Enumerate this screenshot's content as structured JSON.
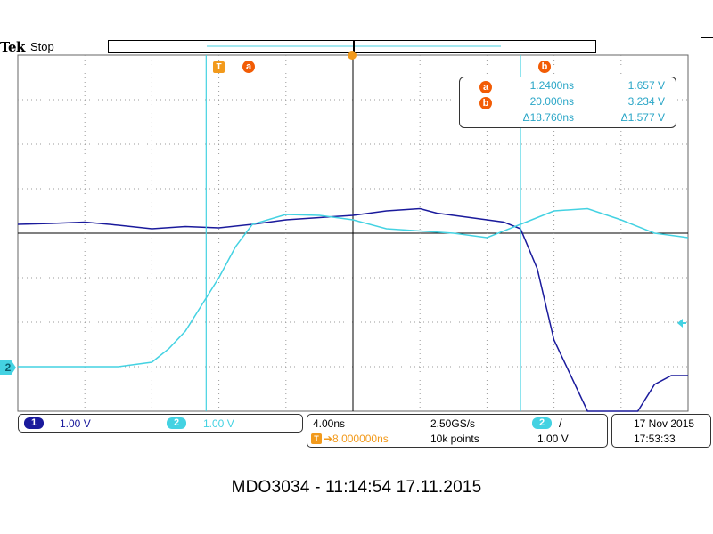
{
  "header": {
    "brand": "Tek",
    "run_state": "Stop"
  },
  "cursors": {
    "a_label": "a",
    "b_label": "b",
    "trigger_label": "T"
  },
  "readout": {
    "a": {
      "badge": "a",
      "time": "1.2400ns",
      "volts": "1.657 V"
    },
    "b": {
      "badge": "b",
      "time": "20.000ns",
      "volts": "3.234 V"
    },
    "delta": {
      "time": "Δ18.760ns",
      "volts": "Δ1.577 V"
    }
  },
  "channels": {
    "ch1": {
      "badge": "1",
      "scale": "1.00 V",
      "color": "#1a1a9c"
    },
    "ch2": {
      "badge": "2",
      "scale": "1.00 V",
      "color": "#44d2e2"
    },
    "ch2_marker": "2"
  },
  "timebase": {
    "time_per_div": "4.00ns",
    "sample_rate": "2.50GS/s",
    "trigger_badge": "T",
    "trigger_position": "➔8.000000ns",
    "record_length": "10k points",
    "trigger_channel": "2",
    "trigger_slope": "/",
    "trigger_level": "1.00 V"
  },
  "datetime": {
    "date": "17 Nov 2015",
    "time": "17:53:33"
  },
  "footer": {
    "caption": "MDO3034 - 11:14:54   17.11.2015"
  },
  "colors": {
    "cursor_badge": "#f25c05",
    "trigger": "#f29a1c",
    "grid": "#888888",
    "ch1_trace": "#1a1a9c",
    "ch2_trace": "#44d2e2"
  },
  "chart_data": {
    "type": "line",
    "x_unit": "ns",
    "xlim": [
      -10,
      30
    ],
    "ylim": [
      -4,
      4
    ],
    "series": [
      {
        "name": "1",
        "x": [
          -10,
          -8,
          -6,
          -4,
          -2,
          0,
          2,
          4,
          6,
          8,
          10,
          12,
          14,
          15,
          16,
          17,
          18,
          19,
          20,
          21,
          22,
          24,
          26,
          27,
          28,
          29,
          30
        ],
        "values": [
          0.2,
          0.22,
          0.25,
          0.18,
          0.1,
          0.15,
          0.12,
          0.2,
          0.3,
          0.35,
          0.4,
          0.5,
          0.55,
          0.45,
          0.4,
          0.35,
          0.3,
          0.25,
          0.1,
          -0.8,
          -2.4,
          -4,
          -4,
          -4,
          -3.4,
          -3.2,
          -3.2
        ]
      },
      {
        "name": "2",
        "x": [
          -10,
          -8,
          -6,
          -4,
          -2,
          -1,
          0,
          1,
          2,
          3,
          4,
          6,
          8,
          10,
          12,
          14,
          16,
          18,
          20,
          22,
          24,
          26,
          28,
          30
        ],
        "values": [
          -3.0,
          -3.0,
          -3.0,
          -3.0,
          -2.9,
          -2.6,
          -2.2,
          -1.6,
          -1.0,
          -0.3,
          0.2,
          0.42,
          0.4,
          0.3,
          0.1,
          0.05,
          0.0,
          -0.1,
          0.2,
          0.5,
          0.55,
          0.3,
          0.0,
          -0.1
        ]
      }
    ],
    "cursor_a_x": 1.24,
    "cursor_b_x": 20.0
  }
}
